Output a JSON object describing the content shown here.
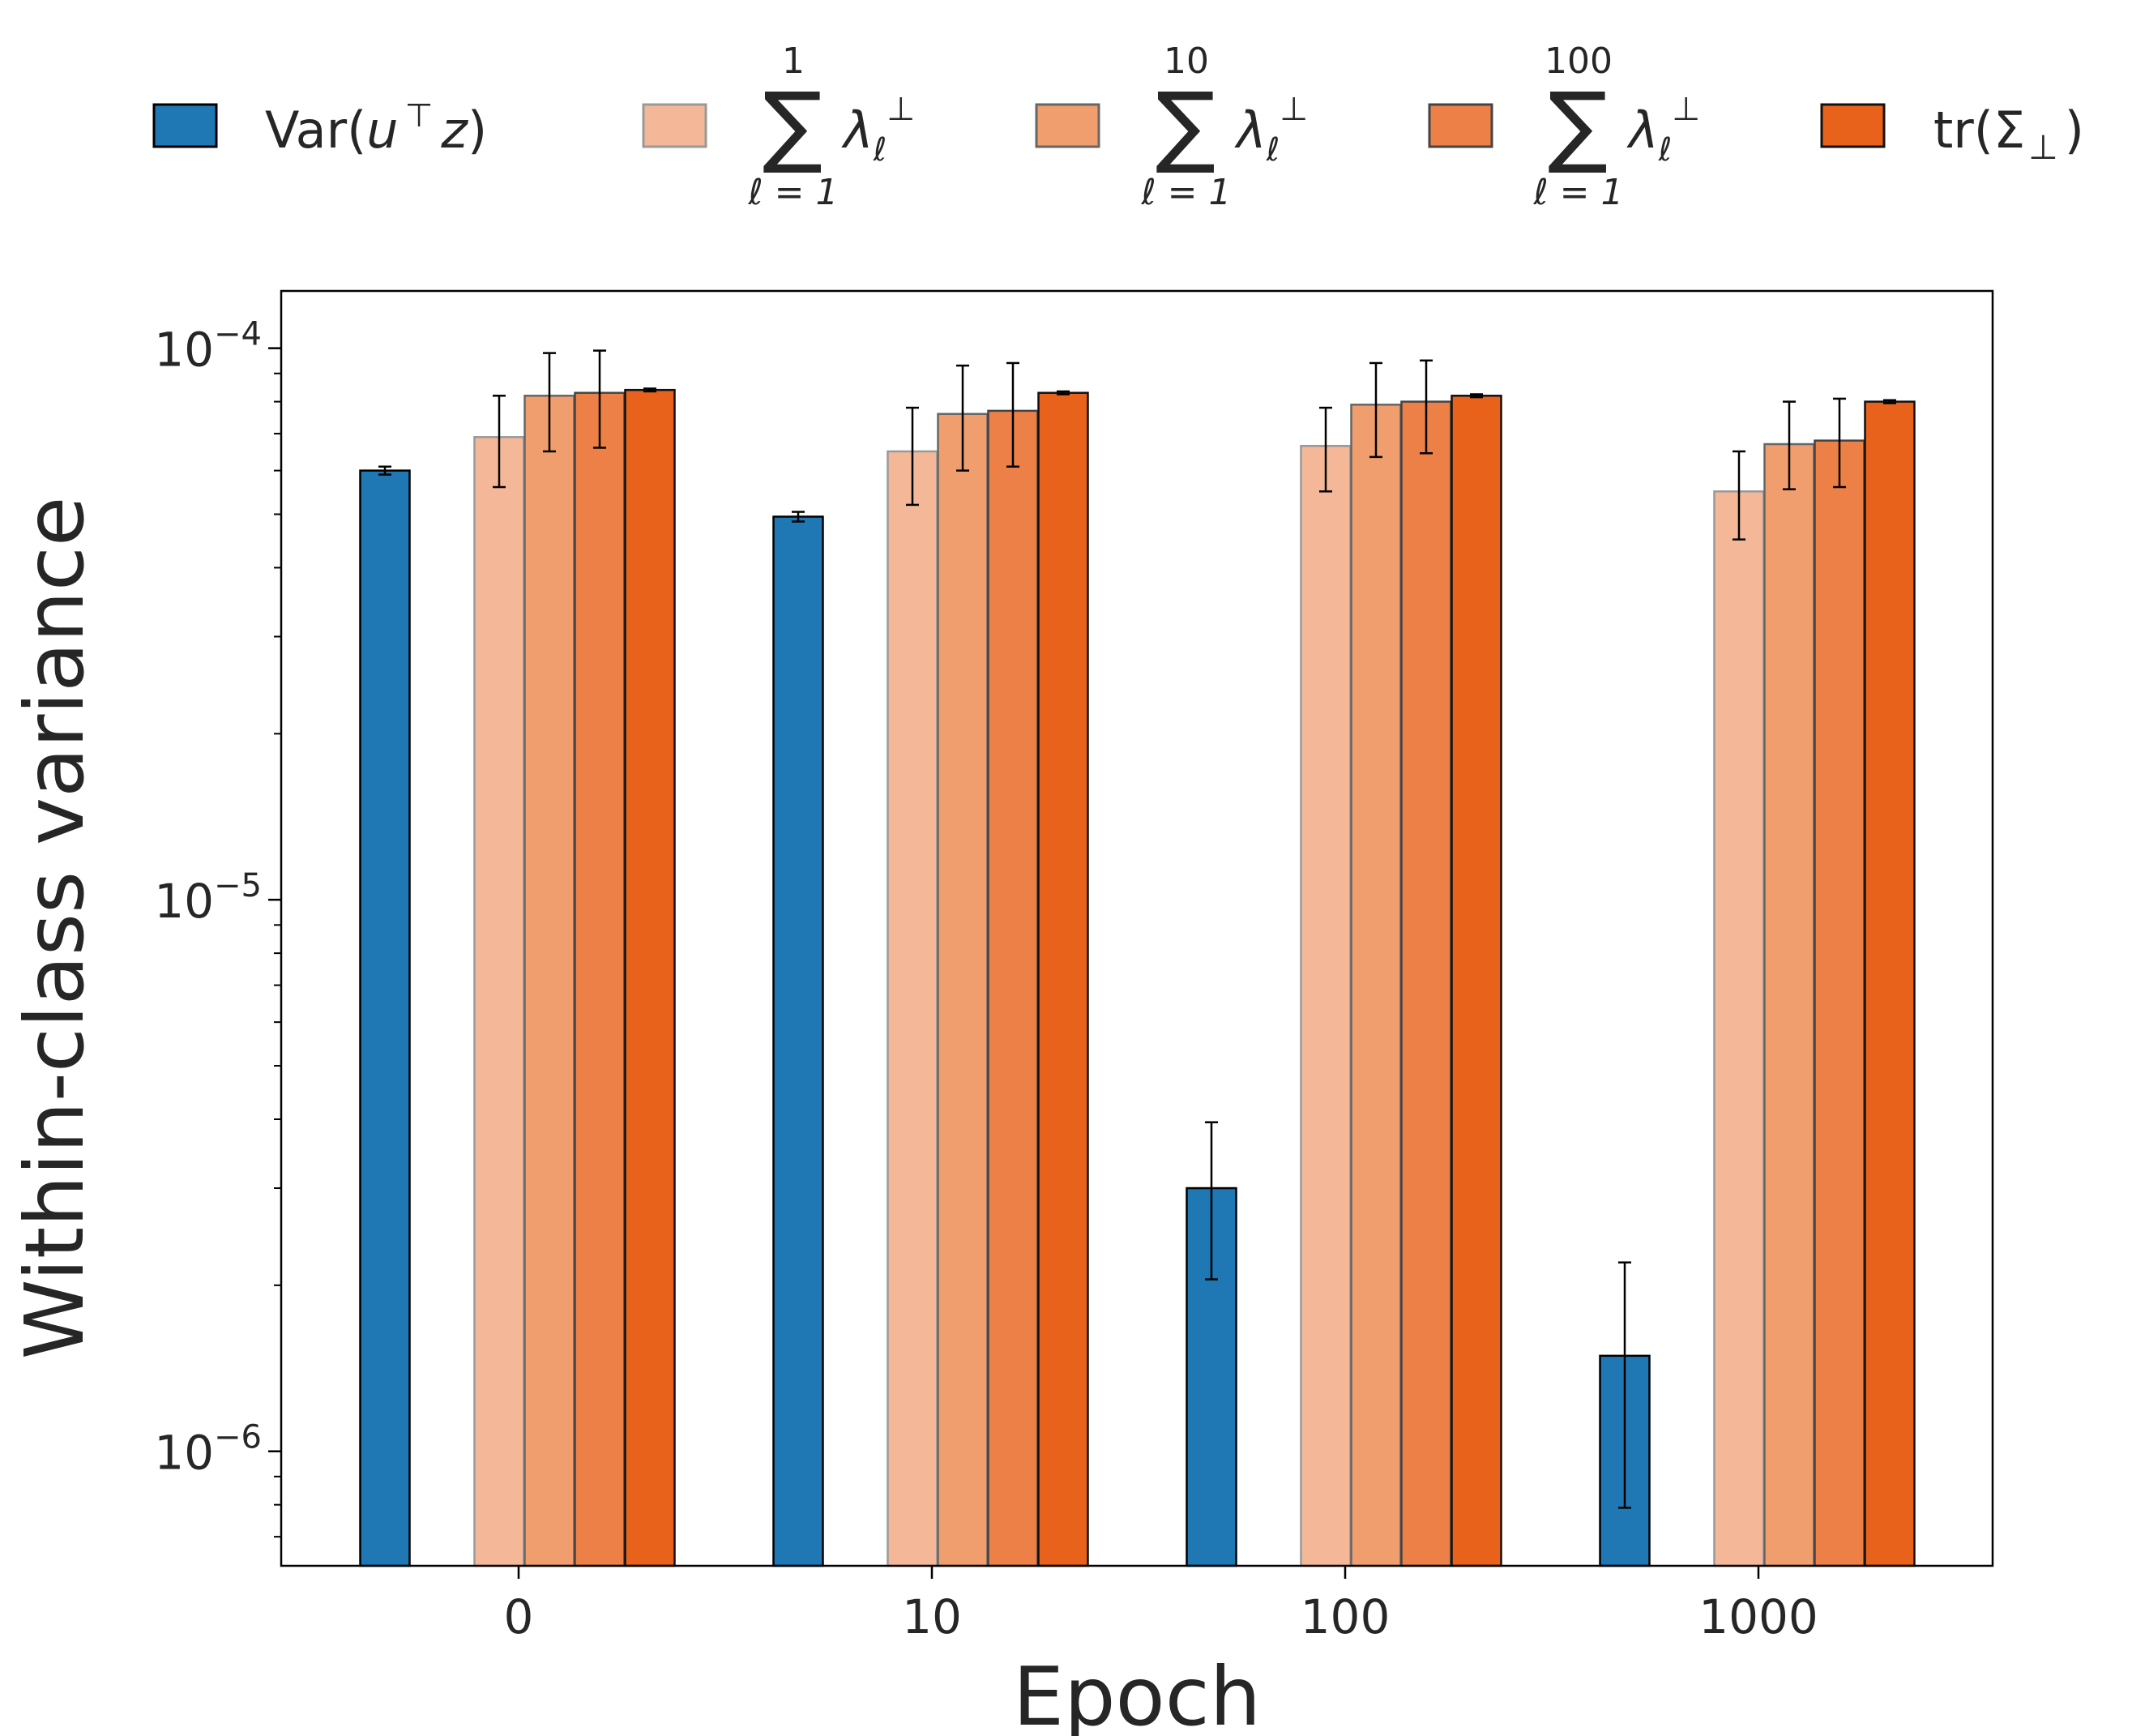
{
  "chart_data": {
    "type": "bar",
    "title": "",
    "xlabel": "Epoch",
    "ylabel": "Within-class variance",
    "yscale": "log",
    "ylim": [
      6.2e-07,
      0.000127
    ],
    "yticks": [
      {
        "value": 0.0001,
        "base": "10",
        "exp": "−4"
      },
      {
        "value": 1e-05,
        "base": "10",
        "exp": "−5"
      },
      {
        "value": 1e-06,
        "base": "10",
        "exp": "−6"
      }
    ],
    "categories": [
      "0",
      "10",
      "100",
      "1000"
    ],
    "grid": false,
    "legend_placement": "top, outside, single row",
    "series": [
      {
        "key": "var",
        "color": "#1f77b4",
        "edge": "#000000",
        "legend": {
          "text": "Var(",
          "italic1": "u",
          "sup": "⊤",
          "italic2": "z",
          "close": ")"
        },
        "values": [
          6e-05,
          4.95e-05,
          3e-06,
          1.49e-06
        ],
        "err_low": [
          5.9e-05,
          4.85e-05,
          2.05e-06,
          7.9e-07
        ],
        "err_high": [
          6.1e-05,
          5.05e-05,
          3.95e-06,
          2.2e-06
        ]
      },
      {
        "key": "sum1",
        "color": "#f4b898",
        "edge": "#999999",
        "legend": {
          "upper": "1",
          "lower": "ℓ = 1",
          "sigma": "∑",
          "lambda": "λ",
          "sub": "ℓ",
          "sup": "⊥"
        },
        "values": [
          6.9e-05,
          6.5e-05,
          6.65e-05,
          5.5e-05
        ],
        "err_low": [
          5.6e-05,
          5.2e-05,
          5.5e-05,
          4.5e-05
        ],
        "err_high": [
          8.2e-05,
          7.8e-05,
          7.8e-05,
          6.5e-05
        ]
      },
      {
        "key": "sum10",
        "color": "#f09e6e",
        "edge": "#666666",
        "legend": {
          "upper": "10",
          "lower": "ℓ = 1",
          "sigma": "∑",
          "lambda": "λ",
          "sub": "ℓ",
          "sup": "⊥"
        },
        "values": [
          8.2e-05,
          7.6e-05,
          7.9e-05,
          6.7e-05
        ],
        "err_low": [
          6.5e-05,
          6e-05,
          6.35e-05,
          5.55e-05
        ],
        "err_high": [
          9.8e-05,
          9.3e-05,
          9.4e-05,
          8e-05
        ]
      },
      {
        "key": "sum100",
        "color": "#ed8046",
        "edge": "#444444",
        "legend": {
          "upper": "100",
          "lower": "ℓ = 1",
          "sigma": "∑",
          "lambda": "λ",
          "sub": "ℓ",
          "sup": "⊥"
        },
        "values": [
          8.3e-05,
          7.7e-05,
          8e-05,
          6.8e-05
        ],
        "err_low": [
          6.6e-05,
          6.1e-05,
          6.45e-05,
          5.6e-05
        ],
        "err_high": [
          9.9e-05,
          9.4e-05,
          9.5e-05,
          8.1e-05
        ]
      },
      {
        "key": "trace",
        "color": "#e8621c",
        "edge": "#111111",
        "legend": {
          "text": "tr(Σ",
          "sub": "⊥",
          "close": ")"
        },
        "values": [
          8.4e-05,
          8.3e-05,
          8.2e-05,
          8e-05
        ],
        "err_low": [
          8.35e-05,
          8.25e-05,
          8.15e-05,
          7.95e-05
        ],
        "err_high": [
          8.45e-05,
          8.35e-05,
          8.25e-05,
          8.05e-05
        ]
      }
    ]
  }
}
